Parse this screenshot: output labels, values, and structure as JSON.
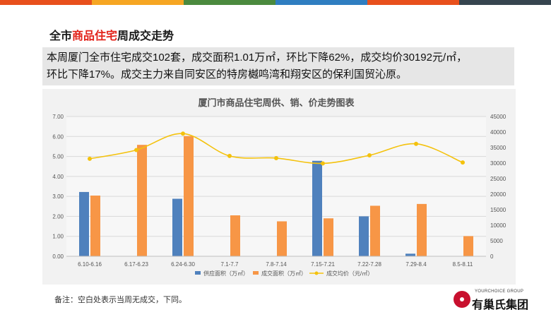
{
  "colors": {
    "top_bar": [
      "#e8501c",
      "#f6a623",
      "#4b8a3e",
      "#2f7ec1",
      "#e8501c",
      "#36454f"
    ],
    "supply": "#4f81bd",
    "sold": "#f79646",
    "price": "#f4c20d",
    "highlight": "#e2231a"
  },
  "header": {
    "title_prefix": "全市",
    "title_highlight": "商品住宅",
    "title_suffix": "周成交走势"
  },
  "summary": {
    "line1": "本周厦门全市住宅成交102套，成交面积1.01万㎡，环比下降62%，成交均价30192元/㎡，",
    "line2": "环比下降17%。成交主力来自同安区的特房樾鸣湾和翔安区的保利国贸沁原。"
  },
  "chart_data": {
    "type": "bar",
    "title": "厦门市商品住宅周供、销、价走势图表",
    "categories": [
      "6.10-6.16",
      "6.17-6.23",
      "6.24-6.30",
      "7.1-7.7",
      "7.8-7.14",
      "7.15-7.21",
      "7.22-7.28",
      "7.29-8.4",
      "8.5-8.11"
    ],
    "series": [
      {
        "name": "供应面积（万㎡）",
        "kind": "bar",
        "axis": "left",
        "values": [
          3.22,
          null,
          2.88,
          null,
          null,
          4.78,
          2.0,
          0.13,
          null
        ]
      },
      {
        "name": "成交面积（万㎡）",
        "kind": "bar",
        "axis": "left",
        "values": [
          3.04,
          5.58,
          6.02,
          2.05,
          1.75,
          1.9,
          2.53,
          2.62,
          1.01
        ]
      },
      {
        "name": "成交均价（元/㎡）",
        "kind": "line",
        "axis": "right",
        "values": [
          31400,
          34200,
          39500,
          32300,
          31600,
          29900,
          32500,
          36200,
          30192
        ]
      }
    ],
    "y_left": {
      "min": 0,
      "max": 7,
      "step": 1,
      "ticks": [
        "0.00",
        "1.00",
        "2.00",
        "3.00",
        "4.00",
        "5.00",
        "6.00",
        "7.00"
      ]
    },
    "y_right": {
      "min": 0,
      "max": 45000,
      "step": 5000,
      "ticks": [
        "0",
        "5000",
        "10000",
        "15000",
        "20000",
        "25000",
        "30000",
        "35000",
        "40000",
        "45000"
      ]
    },
    "grid": true,
    "legend_position": "bottom"
  },
  "footer": {
    "note": "备注：空白处表示当周无成交，下同。",
    "logo_en": "YOURCHOICE GROUP",
    "logo_cn": "有巢氏集团"
  }
}
